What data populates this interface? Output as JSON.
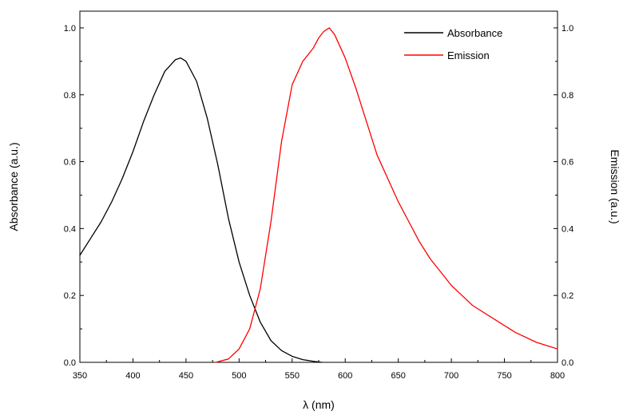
{
  "chart_data": {
    "type": "line",
    "title": "",
    "xlabel": "λ (nm)",
    "ylabel_left": "Absorbance (a.u.)",
    "ylabel_right": "Emission (a.u.)",
    "xlim": [
      350,
      800
    ],
    "ylim": [
      0.0,
      1.05
    ],
    "x_ticks": [
      350,
      400,
      450,
      500,
      550,
      600,
      650,
      700,
      750,
      800
    ],
    "y_ticks_left": [
      "0.0",
      "0.2",
      "0.4",
      "0.6",
      "0.8",
      "1.0"
    ],
    "y_ticks_right": [
      "0.0",
      "0.2",
      "0.4",
      "0.6",
      "0.8",
      "1.0"
    ],
    "grid": false,
    "legend_position": "top-right",
    "series": [
      {
        "name": "Absorbance",
        "axis": "left",
        "color": "#000000",
        "x": [
          350,
          360,
          370,
          380,
          390,
          400,
          410,
          420,
          430,
          440,
          445,
          450,
          460,
          470,
          480,
          490,
          500,
          510,
          520,
          530,
          540,
          550,
          560,
          570,
          578
        ],
        "y": [
          0.32,
          0.37,
          0.42,
          0.48,
          0.55,
          0.63,
          0.72,
          0.8,
          0.87,
          0.905,
          0.91,
          0.9,
          0.84,
          0.73,
          0.59,
          0.43,
          0.3,
          0.2,
          0.12,
          0.065,
          0.035,
          0.018,
          0.008,
          0.003,
          0.0
        ]
      },
      {
        "name": "Emission",
        "axis": "right",
        "color": "#ff0000",
        "x": [
          478,
          490,
          500,
          510,
          520,
          530,
          540,
          550,
          560,
          570,
          575,
          580,
          585,
          590,
          600,
          610,
          620,
          630,
          640,
          650,
          660,
          670,
          680,
          690,
          700,
          710,
          720,
          740,
          760,
          780,
          800
        ],
        "y": [
          0.0,
          0.01,
          0.04,
          0.1,
          0.22,
          0.42,
          0.66,
          0.83,
          0.9,
          0.94,
          0.97,
          0.99,
          1.0,
          0.98,
          0.91,
          0.82,
          0.72,
          0.62,
          0.55,
          0.48,
          0.42,
          0.36,
          0.31,
          0.27,
          0.23,
          0.2,
          0.17,
          0.13,
          0.09,
          0.06,
          0.04
        ]
      }
    ]
  }
}
